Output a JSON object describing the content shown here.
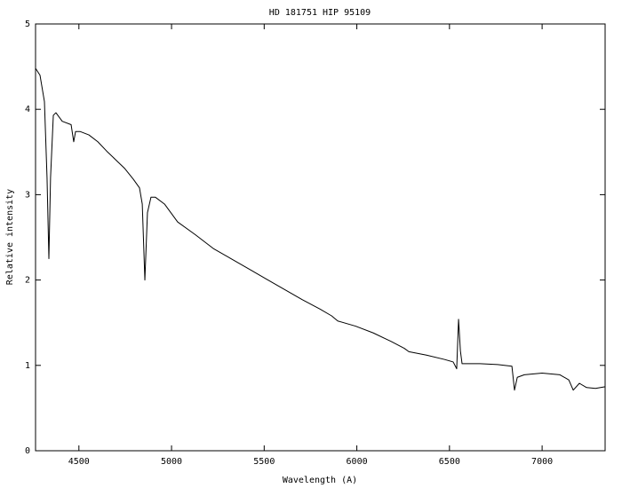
{
  "chart_data": {
    "type": "line",
    "title": "HD 181751 HIP 95109",
    "x_label": "Wavelength (A)",
    "y_label": "Relative intensity",
    "x": [
      4266,
      4290,
      4314,
      4328,
      4338,
      4347,
      4362,
      4376,
      4410,
      4458,
      4472,
      4482,
      4506,
      4554,
      4602,
      4650,
      4698,
      4746,
      4794,
      4827,
      4842,
      4856,
      4870,
      4889,
      4913,
      4962,
      5033,
      5129,
      5225,
      5321,
      5417,
      5513,
      5609,
      5705,
      5801,
      5864,
      5897,
      5993,
      6089,
      6185,
      6256,
      6281,
      6376,
      6472,
      6520,
      6539,
      6549,
      6559,
      6568,
      6664,
      6760,
      6837,
      6851,
      6866,
      6904,
      7000,
      7096,
      7144,
      7168,
      7201,
      7240,
      7288,
      7340
    ],
    "series": [
      {
        "color": "#000000",
        "values": [
          4.48,
          4.4,
          4.09,
          3.2,
          2.25,
          3.2,
          3.93,
          3.96,
          3.86,
          3.82,
          3.62,
          3.74,
          3.74,
          3.7,
          3.62,
          3.51,
          3.41,
          3.31,
          3.18,
          3.08,
          2.89,
          2.0,
          2.79,
          2.97,
          2.97,
          2.89,
          2.68,
          2.53,
          2.37,
          2.25,
          2.13,
          2.01,
          1.89,
          1.77,
          1.66,
          1.58,
          1.52,
          1.46,
          1.38,
          1.28,
          1.2,
          1.16,
          1.12,
          1.07,
          1.04,
          0.96,
          1.54,
          1.17,
          1.02,
          1.02,
          1.01,
          0.99,
          0.71,
          0.86,
          0.89,
          0.91,
          0.89,
          0.83,
          0.71,
          0.79,
          0.74,
          0.73,
          0.75
        ]
      }
    ],
    "xlim": [
      4266,
      7340
    ],
    "ylim": [
      0,
      5
    ],
    "xticks": [
      4500,
      5000,
      5500,
      6000,
      6500,
      7000
    ],
    "yticks": [
      0,
      1,
      2,
      3,
      4,
      5
    ]
  }
}
